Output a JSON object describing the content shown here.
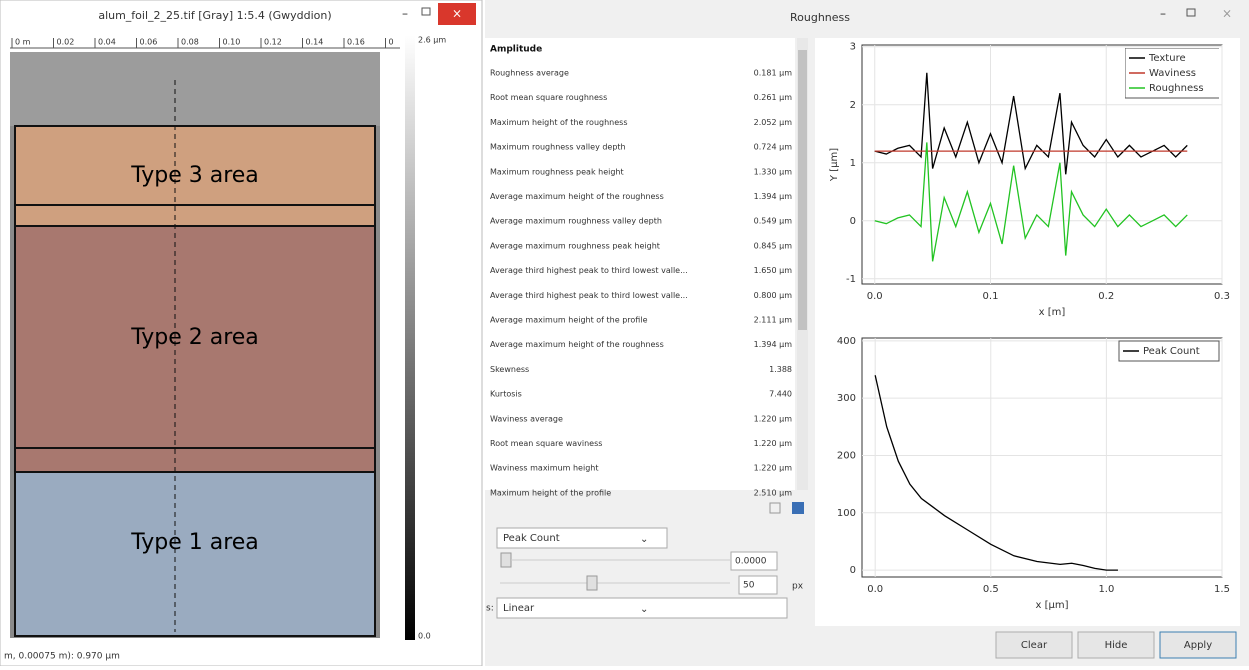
{
  "image_window": {
    "title": "alum_foil_2_25.tif [Gray] 1:5.4 (Gwyddion)",
    "ruler": [
      "0 m",
      "0.02",
      "0.04",
      "0.06",
      "0.08",
      "0.10",
      "0.12",
      "0.14",
      "0.16",
      "0"
    ],
    "colorbar": {
      "max": "2.6 µm",
      "min": "0.0"
    },
    "areas": [
      "Type 3 area",
      "Type 2 area",
      "Type 1 area"
    ],
    "status": "m, 0.00075 m): 0.970 µm"
  },
  "roughness_window": {
    "title": "Roughness",
    "parameters": {
      "heading": "Amplitude",
      "rows": [
        [
          "Roughness average",
          "0.181 µm"
        ],
        [
          "Root mean square roughness",
          "0.261 µm"
        ],
        [
          "Maximum height of the roughness",
          "2.052 µm"
        ],
        [
          "Maximum roughness valley depth",
          "0.724 µm"
        ],
        [
          "Maximum roughness peak height",
          "1.330 µm"
        ],
        [
          "Average maximum height of the roughness",
          "1.394 µm"
        ],
        [
          "Average maximum roughness valley depth",
          "0.549 µm"
        ],
        [
          "Average maximum roughness peak height",
          "0.845 µm"
        ],
        [
          "Average third highest peak to third lowest valle...",
          "1.650 µm"
        ],
        [
          "Average third highest peak to third lowest valle...",
          "0.800 µm"
        ],
        [
          "Average maximum height of the profile",
          "2.111 µm"
        ],
        [
          "Average maximum height of the roughness",
          "1.394 µm"
        ],
        [
          "Skewness",
          "1.388"
        ],
        [
          "Kurtosis",
          "7.440"
        ],
        [
          "Waviness average",
          "1.220 µm"
        ],
        [
          "Root mean square waviness",
          "1.220 µm"
        ],
        [
          "Waviness maximum height",
          "1.220 µm"
        ],
        [
          "Maximum height of the profile",
          "2.510 µm"
        ]
      ]
    },
    "controls": {
      "quantity": "Peak Count",
      "threshold": "0.0000",
      "length": "50",
      "length_unit": "px",
      "scale_label": "s:",
      "scale": "Linear"
    },
    "buttons": [
      "Clear",
      "Hide",
      "Apply"
    ],
    "charts": [
      {
        "type": "line",
        "xlabel": "x [m]",
        "ylabel": "Y [µm]",
        "x": [
          0,
          0.01,
          0.02,
          0.03,
          0.04,
          0.045,
          0.05,
          0.06,
          0.07,
          0.08,
          0.09,
          0.1,
          0.11,
          0.12,
          0.13,
          0.14,
          0.15,
          0.16,
          0.165,
          0.17,
          0.18,
          0.19,
          0.2,
          0.21,
          0.22,
          0.23,
          0.24,
          0.25,
          0.26,
          0.27
        ],
        "series": [
          {
            "name": "Texture",
            "color": "#000000",
            "values": [
              1.2,
              1.15,
              1.25,
              1.3,
              1.1,
              2.55,
              0.9,
              1.6,
              1.1,
              1.7,
              1.0,
              1.5,
              1.0,
              2.15,
              0.9,
              1.3,
              1.1,
              2.2,
              0.8,
              1.7,
              1.3,
              1.1,
              1.4,
              1.1,
              1.3,
              1.1,
              1.2,
              1.3,
              1.1,
              1.3
            ]
          },
          {
            "name": "Waviness",
            "color": "#c0392b",
            "values": [
              1.2,
              1.2,
              1.2,
              1.2,
              1.2,
              1.2,
              1.2,
              1.2,
              1.2,
              1.2,
              1.2,
              1.2,
              1.2,
              1.2,
              1.2,
              1.2,
              1.2,
              1.2,
              1.2,
              1.2,
              1.2,
              1.2,
              1.2,
              1.2,
              1.2,
              1.2,
              1.2,
              1.2,
              1.2,
              1.2
            ]
          },
          {
            "name": "Roughness",
            "color": "#22c322",
            "values": [
              0,
              -0.05,
              0.05,
              0.1,
              -0.1,
              1.35,
              -0.7,
              0.4,
              -0.1,
              0.5,
              -0.2,
              0.3,
              -0.4,
              0.95,
              -0.3,
              0.1,
              -0.1,
              1.0,
              -0.6,
              0.5,
              0.1,
              -0.1,
              0.2,
              -0.1,
              0.1,
              -0.1,
              0,
              0.1,
              -0.1,
              0.1
            ]
          }
        ],
        "xlim": [
          -0.011,
          0.3
        ],
        "ylim": [
          -1.09,
          3.03
        ],
        "xticks": [
          {
            "value": 0,
            "label": "0.0"
          },
          0.1,
          0.2,
          0.3
        ],
        "yticks": [
          -1,
          0,
          1,
          2,
          3
        ]
      },
      {
        "type": "line",
        "xlabel": "x [µm]",
        "x": [
          0,
          0.05,
          0.1,
          0.15,
          0.2,
          0.25,
          0.3,
          0.4,
          0.5,
          0.6,
          0.7,
          0.8,
          0.85,
          0.9,
          0.95,
          1.0,
          1.05
        ],
        "series": [
          {
            "name": "Peak Count",
            "color": "#000000",
            "values": [
              340,
              250,
              190,
              150,
              125,
              110,
              95,
              70,
              45,
              25,
              15,
              10,
              12,
              8,
              3,
              0,
              0
            ]
          }
        ],
        "xlim": [
          -0.057,
          1.5
        ],
        "ylim": [
          -12,
          405
        ],
        "xticks": [
          {
            "value": 0,
            "label": "0.0"
          },
          0.5,
          {
            "value": 1,
            "label": "1.0"
          },
          1.5
        ],
        "yticks": [
          0,
          100,
          200,
          300,
          400
        ]
      }
    ]
  }
}
